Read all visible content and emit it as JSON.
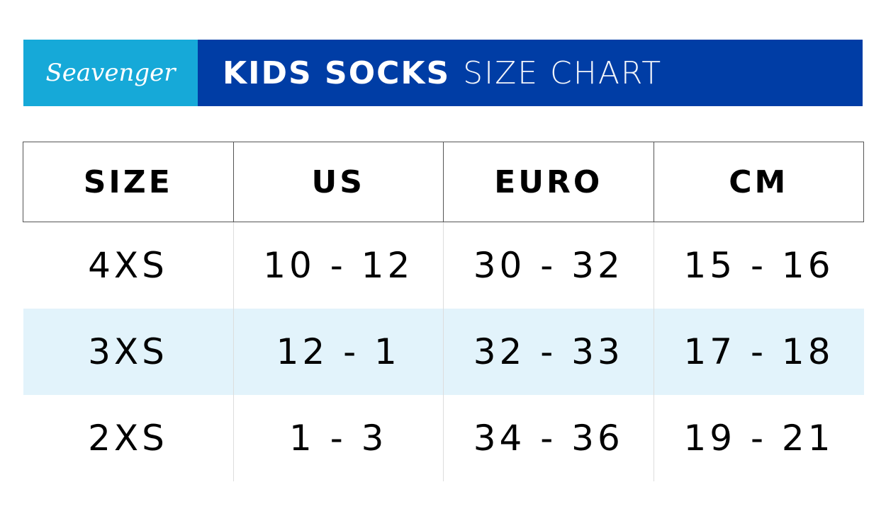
{
  "header": {
    "logo": "Seavenger",
    "title_bold": "KIDS SOCKS",
    "title_light": "SIZE CHART"
  },
  "table": {
    "columns": [
      "SIZE",
      "US",
      "EURO",
      "CM"
    ],
    "rows": [
      [
        "4XS",
        "10 - 12",
        "30 - 32",
        "15 - 16"
      ],
      [
        "3XS",
        "12 - 1",
        "32 - 33",
        "17 - 18"
      ],
      [
        "2XS",
        "1 - 3",
        "34 - 36",
        "19 - 21"
      ]
    ]
  }
}
